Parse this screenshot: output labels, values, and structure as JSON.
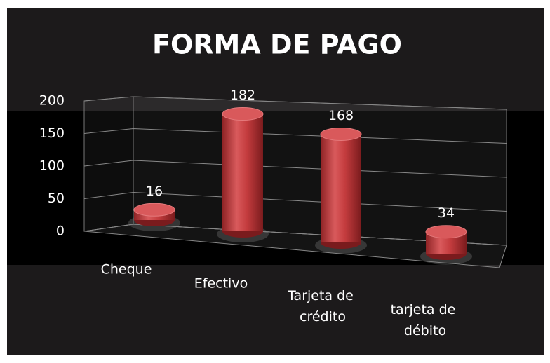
{
  "chart_data": {
    "type": "bar3d",
    "title": "FORMA DE PAGO",
    "categories": [
      "Cheque",
      "Efectivo",
      "Tarjeta de crédito",
      "tarjeta de débito"
    ],
    "values": [
      16,
      182,
      168,
      34
    ],
    "color": "#c43c3e",
    "ylim": [
      0,
      200
    ],
    "yticks": [
      0,
      50,
      100,
      150,
      200
    ],
    "grid": true
  }
}
